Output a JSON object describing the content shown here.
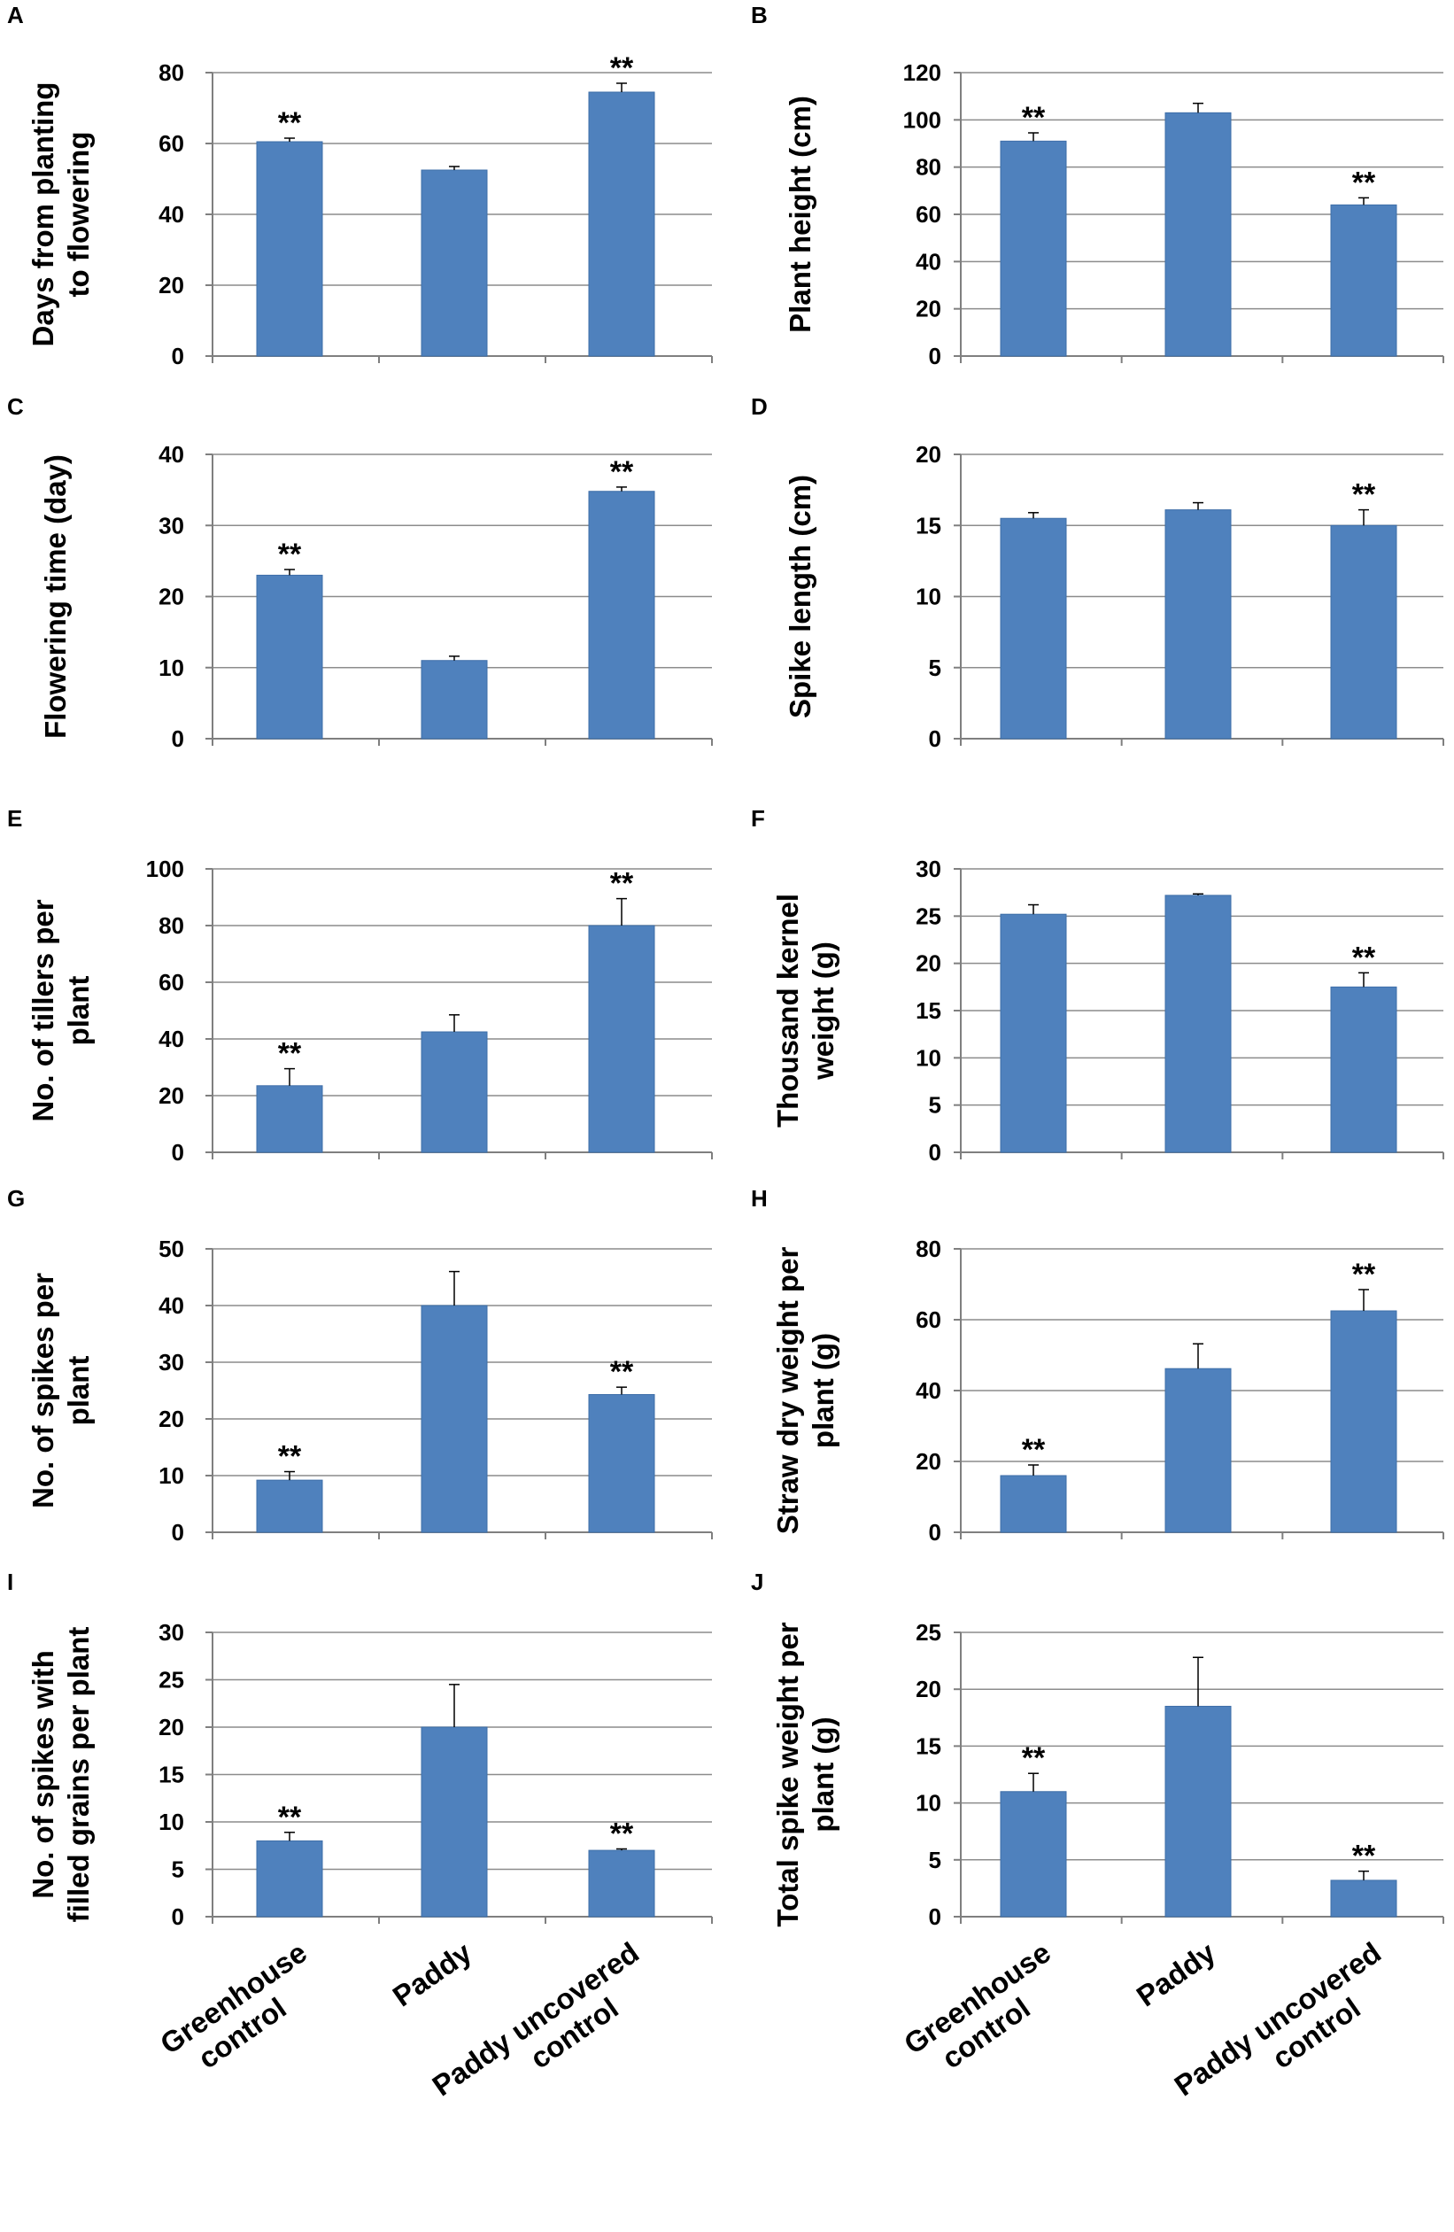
{
  "colors": {
    "bar": "#4f81bd",
    "bar_edge": "#3e6ea8",
    "axis": "#7f7f7f",
    "grid": "#8c8c8c",
    "text": "#000000"
  },
  "x_categories": [
    {
      "line1": "Greenhouse",
      "line2": "control"
    },
    {
      "line1": "Paddy",
      "line2": ""
    },
    {
      "line1": "Paddy uncovered",
      "line2": "control"
    }
  ],
  "chart_data": [
    {
      "type": "bar",
      "panel": "A",
      "ylabel": [
        "Days from planting",
        "to flowering"
      ],
      "ylim": [
        0,
        80
      ],
      "yticks": [
        0,
        20,
        40,
        60,
        80
      ],
      "grid": true,
      "categories": [
        "Greenhouse control",
        "Paddy",
        "Paddy uncovered control"
      ],
      "values": [
        60.5,
        52.5,
        74.5
      ],
      "errors": [
        1.0,
        1.0,
        2.5
      ],
      "sig": [
        "**",
        "",
        "**"
      ]
    },
    {
      "type": "bar",
      "panel": "B",
      "ylabel": [
        "Plant height (cm)"
      ],
      "ylim": [
        0,
        120
      ],
      "yticks": [
        0,
        20,
        40,
        60,
        80,
        100,
        120
      ],
      "grid": true,
      "categories": [
        "Greenhouse control",
        "Paddy",
        "Paddy uncovered control"
      ],
      "values": [
        91,
        103,
        64
      ],
      "errors": [
        3.5,
        4,
        3
      ],
      "sig": [
        "**",
        "",
        "**"
      ]
    },
    {
      "type": "bar",
      "panel": "C",
      "ylabel": [
        "Flowering time (day)"
      ],
      "ylim": [
        0,
        40
      ],
      "yticks": [
        0,
        10,
        20,
        30,
        40
      ],
      "grid": true,
      "categories": [
        "Greenhouse control",
        "Paddy",
        "Paddy uncovered control"
      ],
      "values": [
        23,
        11,
        34.8
      ],
      "errors": [
        0.8,
        0.6,
        0.6
      ],
      "sig": [
        "**",
        "",
        "**"
      ]
    },
    {
      "type": "bar",
      "panel": "D",
      "ylabel": [
        "Spike length (cm)"
      ],
      "ylim": [
        0,
        20
      ],
      "yticks": [
        0,
        5,
        10,
        15,
        20
      ],
      "grid": true,
      "categories": [
        "Greenhouse control",
        "Paddy",
        "Paddy uncovered control"
      ],
      "values": [
        15.5,
        16.1,
        15.0
      ],
      "errors": [
        0.4,
        0.5,
        1.1
      ],
      "sig": [
        "",
        "",
        "**"
      ]
    },
    {
      "type": "bar",
      "panel": "E",
      "ylabel": [
        "No. of tillers per",
        "plant"
      ],
      "ylim": [
        0,
        100
      ],
      "yticks": [
        0,
        20,
        40,
        60,
        80,
        100
      ],
      "grid": true,
      "categories": [
        "Greenhouse control",
        "Paddy",
        "Paddy uncovered control"
      ],
      "values": [
        23.5,
        42.5,
        80
      ],
      "errors": [
        6,
        6,
        9.5
      ],
      "sig": [
        "**",
        "",
        "**"
      ]
    },
    {
      "type": "bar",
      "panel": "F",
      "ylabel": [
        "Thousand kernel",
        "weight (g)"
      ],
      "ylim": [
        0,
        30
      ],
      "yticks": [
        0,
        5,
        10,
        15,
        20,
        25,
        30
      ],
      "grid": true,
      "categories": [
        "Greenhouse control",
        "Paddy",
        "Paddy uncovered control"
      ],
      "values": [
        25.2,
        27.2,
        17.5
      ],
      "errors": [
        1.0,
        0.15,
        1.5
      ],
      "sig": [
        "",
        "",
        "**"
      ]
    },
    {
      "type": "bar",
      "panel": "G",
      "ylabel": [
        "No. of spikes per",
        "plant"
      ],
      "ylim": [
        0,
        50
      ],
      "yticks": [
        0,
        10,
        20,
        30,
        40,
        50
      ],
      "grid": true,
      "categories": [
        "Greenhouse control",
        "Paddy",
        "Paddy uncovered control"
      ],
      "values": [
        9.2,
        40,
        24.3
      ],
      "errors": [
        1.5,
        6,
        1.3
      ],
      "sig": [
        "**",
        "",
        "**"
      ]
    },
    {
      "type": "bar",
      "panel": "H",
      "ylabel": [
        "Straw dry weight per",
        "plant (g)"
      ],
      "ylim": [
        0,
        80
      ],
      "yticks": [
        0,
        20,
        40,
        60,
        80
      ],
      "grid": true,
      "categories": [
        "Greenhouse control",
        "Paddy",
        "Paddy uncovered control"
      ],
      "values": [
        16,
        46.2,
        62.5
      ],
      "errors": [
        3,
        7,
        6
      ],
      "sig": [
        "**",
        "",
        "**"
      ]
    },
    {
      "type": "bar",
      "panel": "I",
      "ylabel": [
        "No. of spikes with",
        "filled grains per plant"
      ],
      "ylim": [
        0,
        30
      ],
      "yticks": [
        0,
        5,
        10,
        15,
        20,
        25,
        30
      ],
      "grid": true,
      "categories": [
        "Greenhouse control",
        "Paddy",
        "Paddy uncovered control"
      ],
      "values": [
        8,
        20,
        7
      ],
      "errors": [
        0.9,
        4.5,
        0.15
      ],
      "sig": [
        "**",
        "",
        "**"
      ]
    },
    {
      "type": "bar",
      "panel": "J",
      "ylabel": [
        "Total spike weight per",
        "plant (g)"
      ],
      "ylim": [
        0,
        25
      ],
      "yticks": [
        0,
        5,
        10,
        15,
        20,
        25
      ],
      "grid": true,
      "categories": [
        "Greenhouse control",
        "Paddy",
        "Paddy uncovered control"
      ],
      "values": [
        11,
        18.5,
        3.2
      ],
      "errors": [
        1.6,
        4.3,
        0.8
      ],
      "sig": [
        "**",
        "",
        "**"
      ]
    }
  ]
}
